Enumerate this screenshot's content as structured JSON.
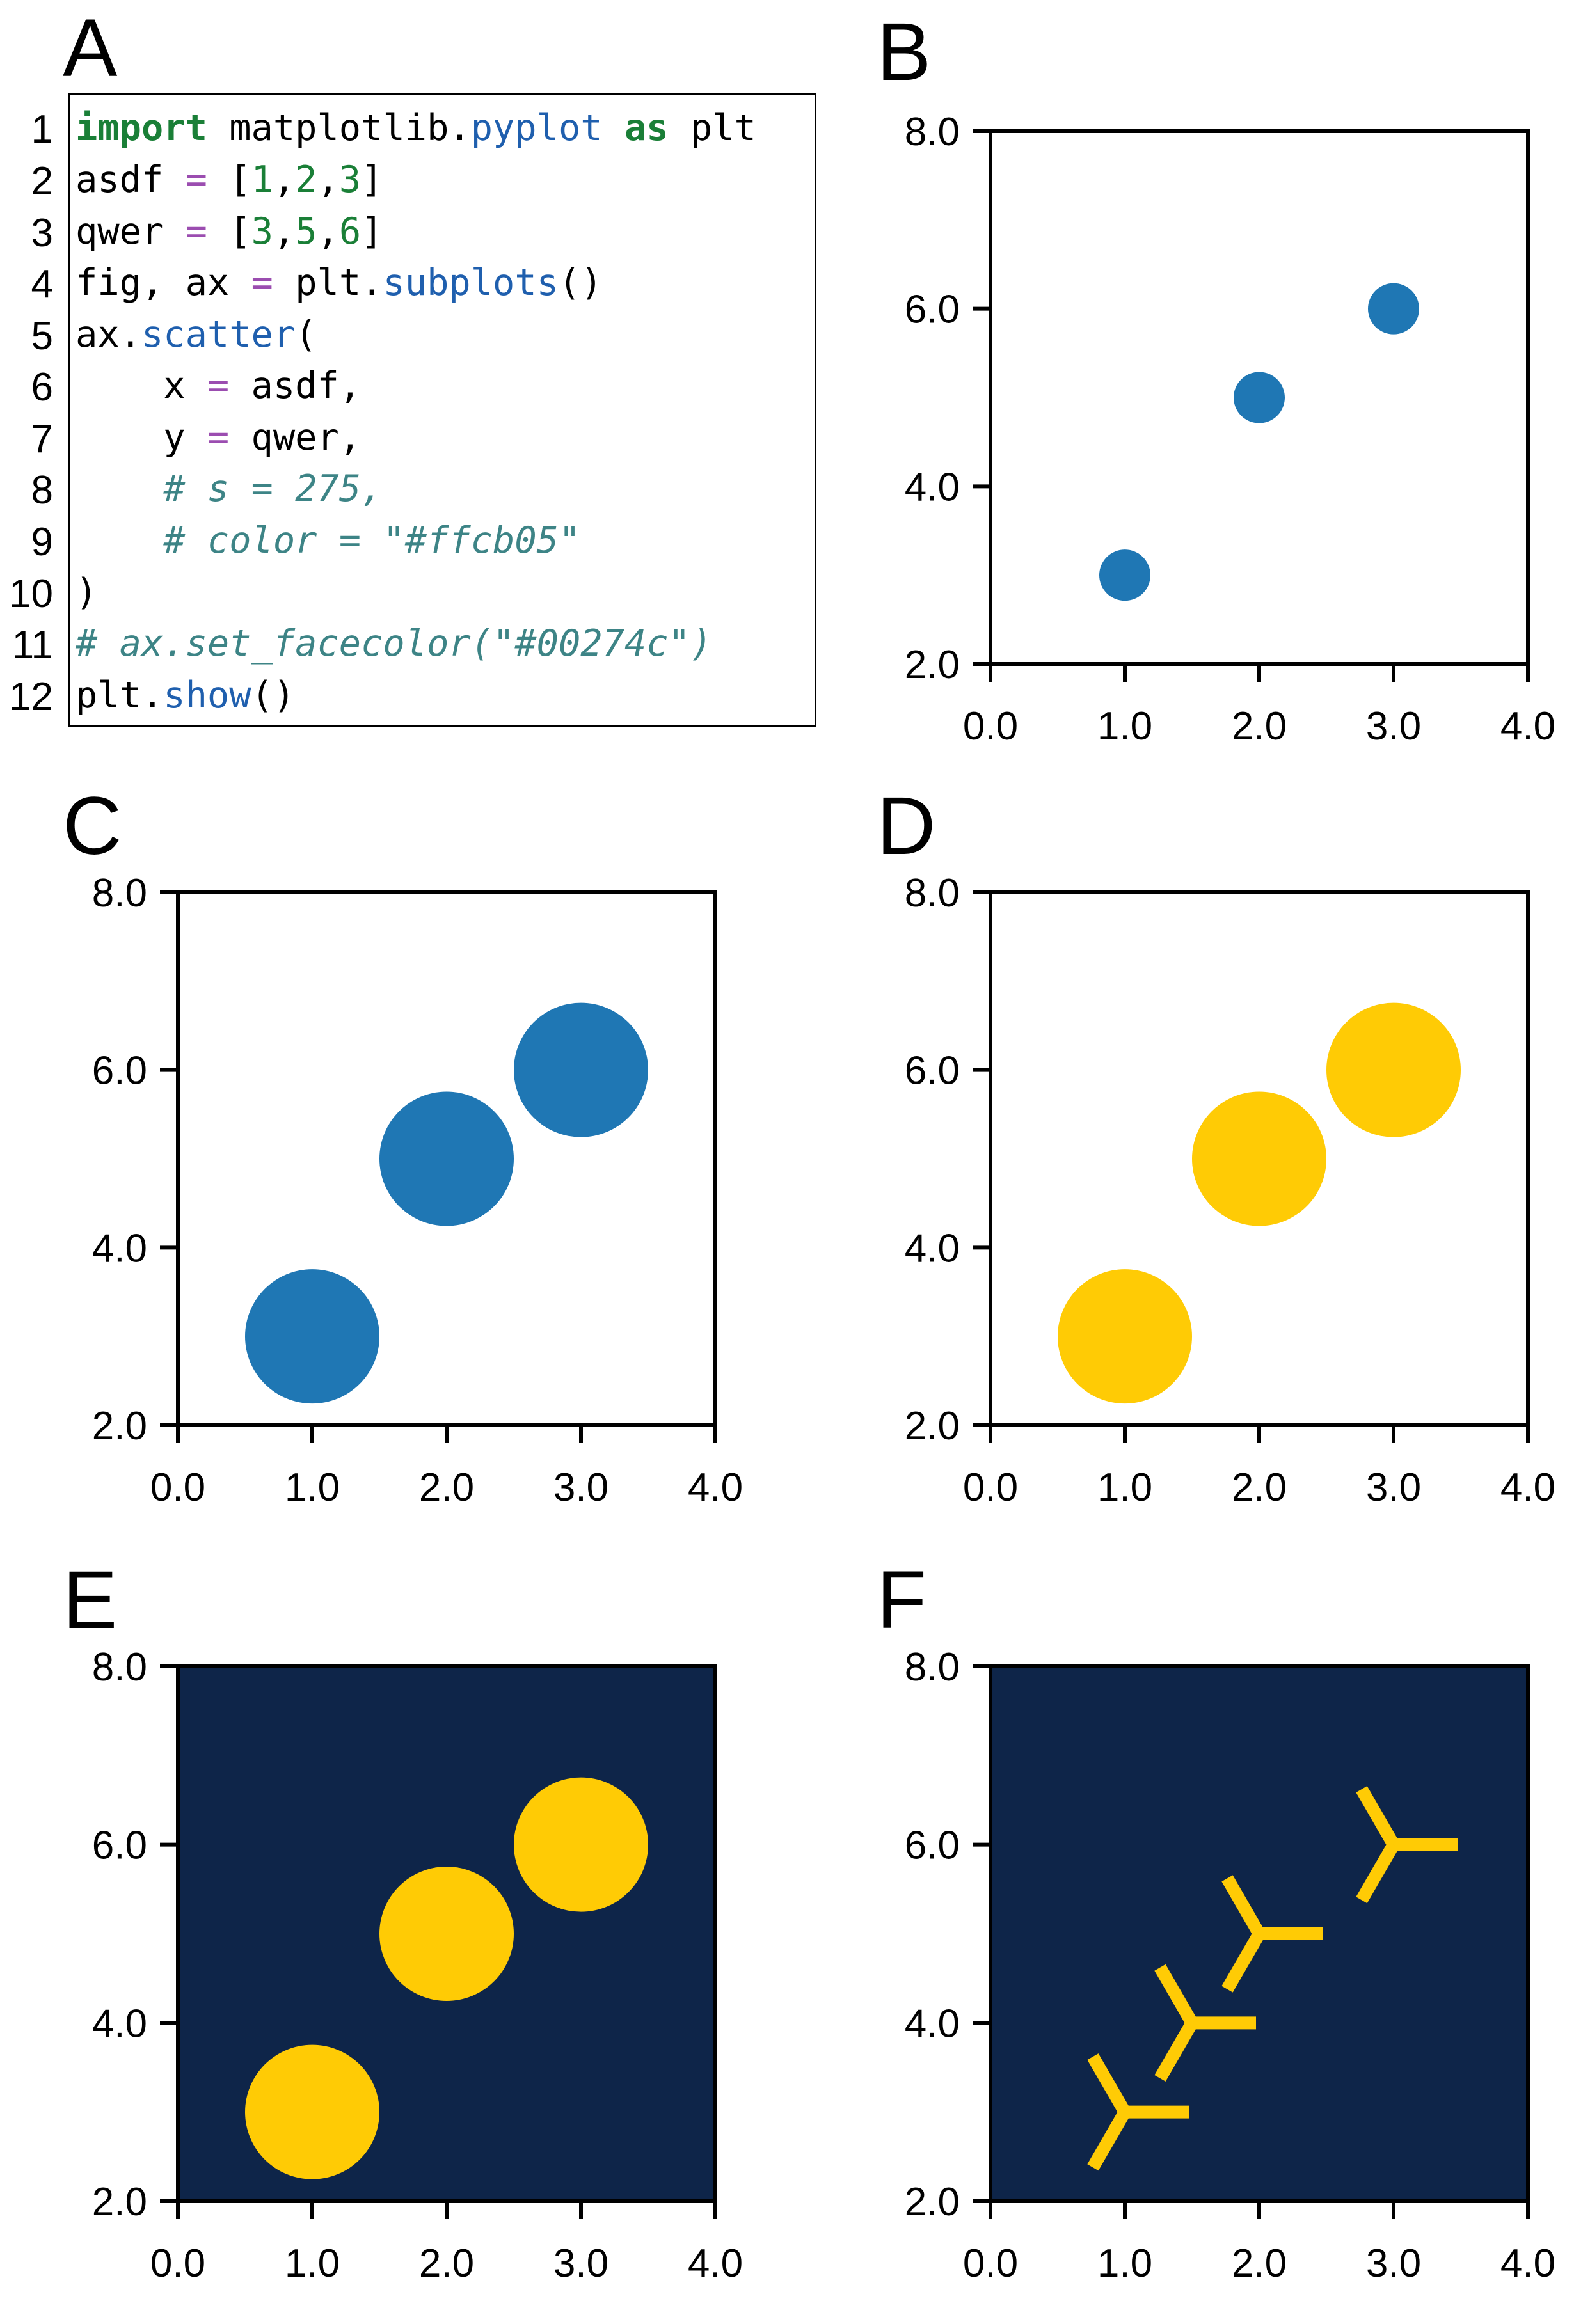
{
  "code_panel": {
    "letter": "A",
    "lines": [
      {
        "no": "1",
        "tokens": [
          {
            "t": "import",
            "c": "kw"
          },
          {
            "t": " matplotlib.",
            "c": "txt"
          },
          {
            "t": "pyplot",
            "c": "fn"
          },
          {
            "t": " ",
            "c": "txt"
          },
          {
            "t": "as",
            "c": "kw"
          },
          {
            "t": " plt",
            "c": "txt"
          }
        ]
      },
      {
        "no": "2",
        "tokens": [
          {
            "t": "asdf ",
            "c": "txt"
          },
          {
            "t": "=",
            "c": "op"
          },
          {
            "t": " [",
            "c": "txt"
          },
          {
            "t": "1",
            "c": "num"
          },
          {
            "t": ",",
            "c": "txt"
          },
          {
            "t": "2",
            "c": "num"
          },
          {
            "t": ",",
            "c": "txt"
          },
          {
            "t": "3",
            "c": "num"
          },
          {
            "t": "]",
            "c": "txt"
          }
        ]
      },
      {
        "no": "3",
        "tokens": [
          {
            "t": "qwer ",
            "c": "txt"
          },
          {
            "t": "=",
            "c": "op"
          },
          {
            "t": " [",
            "c": "txt"
          },
          {
            "t": "3",
            "c": "num"
          },
          {
            "t": ",",
            "c": "txt"
          },
          {
            "t": "5",
            "c": "num"
          },
          {
            "t": ",",
            "c": "txt"
          },
          {
            "t": "6",
            "c": "num"
          },
          {
            "t": "]",
            "c": "txt"
          }
        ]
      },
      {
        "no": "4",
        "tokens": [
          {
            "t": "fig, ax ",
            "c": "txt"
          },
          {
            "t": "=",
            "c": "op"
          },
          {
            "t": " plt.",
            "c": "txt"
          },
          {
            "t": "subplots",
            "c": "fn"
          },
          {
            "t": "()",
            "c": "txt"
          }
        ]
      },
      {
        "no": "5",
        "tokens": [
          {
            "t": "ax.",
            "c": "txt"
          },
          {
            "t": "scatter",
            "c": "fn"
          },
          {
            "t": "(",
            "c": "txt"
          }
        ]
      },
      {
        "no": "6",
        "tokens": [
          {
            "t": "    x ",
            "c": "txt"
          },
          {
            "t": "=",
            "c": "op"
          },
          {
            "t": " asdf,",
            "c": "txt"
          }
        ]
      },
      {
        "no": "7",
        "tokens": [
          {
            "t": "    y ",
            "c": "txt"
          },
          {
            "t": "=",
            "c": "op"
          },
          {
            "t": " qwer,",
            "c": "txt"
          }
        ]
      },
      {
        "no": "8",
        "tokens": [
          {
            "t": "    # s = 275,",
            "c": "cm"
          }
        ]
      },
      {
        "no": "9",
        "tokens": [
          {
            "t": "    # color = \"#ffcb05\"",
            "c": "cm"
          }
        ]
      },
      {
        "no": "10",
        "tokens": [
          {
            "t": ")",
            "c": "txt"
          }
        ]
      },
      {
        "no": "11",
        "tokens": [
          {
            "t": "# ax.set_facecolor(\"#00274c\")",
            "c": "cm"
          }
        ]
      },
      {
        "no": "12",
        "tokens": [
          {
            "t": "plt.",
            "c": "txt"
          },
          {
            "t": "show",
            "c": "fn"
          },
          {
            "t": "()",
            "c": "txt"
          }
        ]
      }
    ]
  },
  "chart_data": [
    {
      "panel": "B",
      "type": "scatter",
      "x": [
        1,
        2,
        3
      ],
      "y": [
        3,
        5,
        6
      ],
      "xlim": [
        0,
        4
      ],
      "ylim": [
        2,
        8
      ],
      "xticks": [
        "0.0",
        "1.0",
        "2.0",
        "3.0",
        "4.0"
      ],
      "yticks": [
        "2.0",
        "4.0",
        "6.0",
        "8.0"
      ],
      "marker": "circle",
      "marker_size": "small",
      "color": "#1f77b4",
      "background": "#ffffff",
      "grid": false
    },
    {
      "panel": "C",
      "type": "scatter",
      "x": [
        1,
        2,
        3
      ],
      "y": [
        3,
        5,
        6
      ],
      "xlim": [
        0,
        4
      ],
      "ylim": [
        2,
        8
      ],
      "xticks": [
        "0.0",
        "1.0",
        "2.0",
        "3.0",
        "4.0"
      ],
      "yticks": [
        "2.0",
        "4.0",
        "6.0",
        "8.0"
      ],
      "marker": "circle",
      "marker_size": "large",
      "color": "#1f77b4",
      "background": "#ffffff",
      "grid": false
    },
    {
      "panel": "D",
      "type": "scatter",
      "x": [
        1,
        2,
        3
      ],
      "y": [
        3,
        5,
        6
      ],
      "xlim": [
        0,
        4
      ],
      "ylim": [
        2,
        8
      ],
      "xticks": [
        "0.0",
        "1.0",
        "2.0",
        "3.0",
        "4.0"
      ],
      "yticks": [
        "2.0",
        "4.0",
        "6.0",
        "8.0"
      ],
      "marker": "circle",
      "marker_size": "large",
      "color": "#ffcb05",
      "background": "#ffffff",
      "grid": false
    },
    {
      "panel": "E",
      "type": "scatter",
      "x": [
        1,
        2,
        3
      ],
      "y": [
        3,
        5,
        6
      ],
      "xlim": [
        0,
        4
      ],
      "ylim": [
        2,
        8
      ],
      "xticks": [
        "0.0",
        "1.0",
        "2.0",
        "3.0",
        "4.0"
      ],
      "yticks": [
        "2.0",
        "4.0",
        "6.0",
        "8.0"
      ],
      "marker": "circle",
      "marker_size": "large",
      "color": "#ffcb05",
      "background": "#0e2549",
      "grid": false
    },
    {
      "panel": "F",
      "type": "scatter",
      "x": [
        1,
        1.5,
        2,
        3
      ],
      "y": [
        3,
        4,
        5,
        6
      ],
      "xlim": [
        0,
        4
      ],
      "ylim": [
        2,
        8
      ],
      "xticks": [
        "0.0",
        "1.0",
        "2.0",
        "3.0",
        "4.0"
      ],
      "yticks": [
        "2.0",
        "4.0",
        "6.0",
        "8.0"
      ],
      "marker": "tri_left",
      "marker_size": "large",
      "color": "#ffcb05",
      "background": "#0e2549",
      "grid": false
    }
  ]
}
